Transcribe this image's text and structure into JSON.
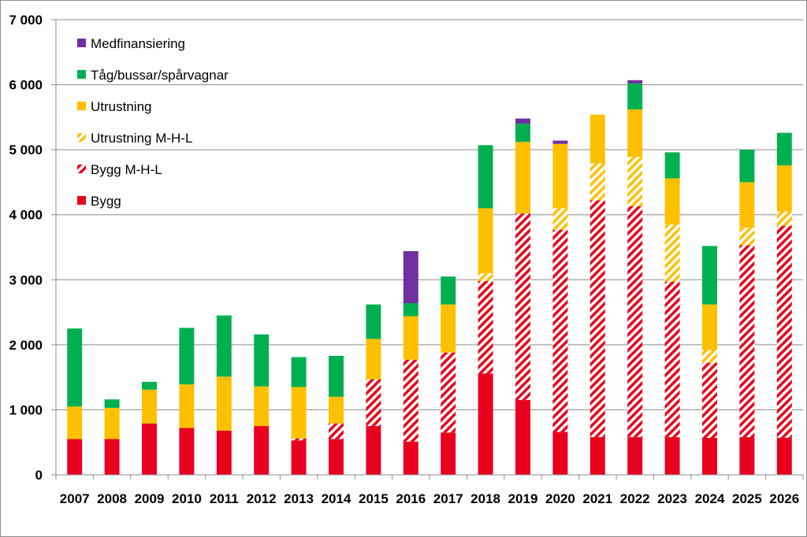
{
  "chart_data": {
    "type": "bar",
    "stacked": true,
    "categories": [
      "2007",
      "2008",
      "2009",
      "2010",
      "2011",
      "2012",
      "2013",
      "2014",
      "2015",
      "2016",
      "2017",
      "2018",
      "2019",
      "2020",
      "2021",
      "2022",
      "2023",
      "2024",
      "2025",
      "2026"
    ],
    "ylim": [
      0,
      7000
    ],
    "yticks": [
      0,
      1000,
      2000,
      3000,
      4000,
      5000,
      6000,
      7000
    ],
    "ytick_labels": [
      "0",
      "1 000",
      "2 000",
      "3 000",
      "4 000",
      "5 000",
      "6 000",
      "7 000"
    ],
    "grid": true,
    "legend_position": "top-left",
    "series": [
      {
        "name": "Bygg",
        "color": "#e8001c",
        "pattern": "solid",
        "values": [
          550,
          550,
          790,
          720,
          680,
          750,
          530,
          550,
          750,
          510,
          650,
          1560,
          1150,
          660,
          580,
          580,
          580,
          570,
          580,
          570
        ]
      },
      {
        "name": "Bygg M-H-L",
        "color": "#e8001c",
        "pattern": "hatched",
        "values": [
          0,
          0,
          0,
          0,
          0,
          0,
          30,
          240,
          720,
          1260,
          1230,
          1420,
          2870,
          3110,
          3640,
          3550,
          2390,
          1150,
          2950,
          3260
        ]
      },
      {
        "name": "Utrustning M-H-L",
        "color": "#ffc000",
        "pattern": "hatched",
        "values": [
          0,
          0,
          0,
          0,
          0,
          0,
          0,
          0,
          0,
          0,
          0,
          120,
          0,
          330,
          570,
          760,
          880,
          200,
          270,
          220
        ]
      },
      {
        "name": "Utrustning",
        "color": "#ffc000",
        "pattern": "solid",
        "values": [
          500,
          480,
          520,
          670,
          830,
          610,
          790,
          410,
          620,
          670,
          740,
          1000,
          1100,
          990,
          750,
          730,
          710,
          700,
          700,
          710
        ]
      },
      {
        "name": "Tåg/bussar/spårvagnar",
        "color": "#00b050",
        "pattern": "solid",
        "values": [
          1200,
          130,
          120,
          870,
          940,
          800,
          460,
          630,
          530,
          200,
          430,
          970,
          280,
          0,
          0,
          400,
          400,
          900,
          500,
          500
        ]
      },
      {
        "name": "Medfinansiering",
        "color": "#7030a0",
        "pattern": "solid",
        "values": [
          0,
          0,
          0,
          0,
          0,
          0,
          0,
          0,
          0,
          800,
          0,
          0,
          80,
          50,
          0,
          50,
          0,
          0,
          0,
          0
        ]
      }
    ]
  }
}
